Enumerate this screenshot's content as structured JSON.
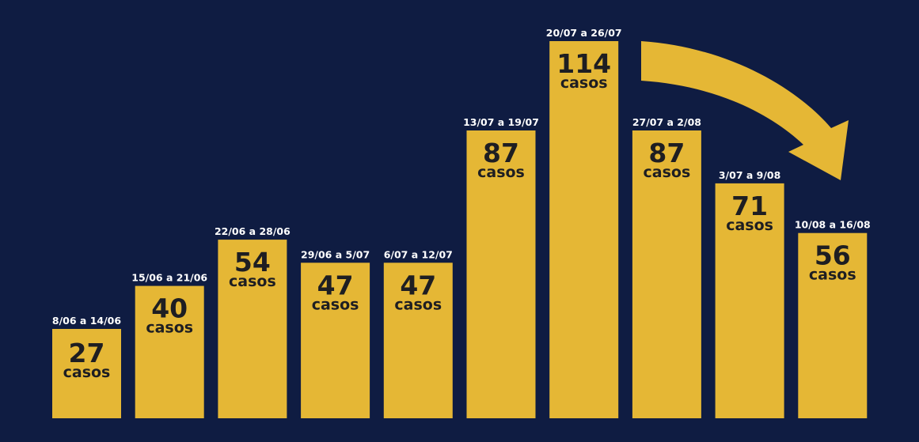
{
  "chart_data": {
    "type": "bar",
    "categories": [
      "8/06 a 14/06",
      "15/06 a 21/06",
      "22/06 a 28/06",
      "29/06 a 5/07",
      "6/07 a 12/07",
      "13/07 a 19/07",
      "20/07 a 26/07",
      "27/07 a 2/08",
      "3/07 a 9/08",
      "10/08 a 16/08"
    ],
    "values": [
      27,
      40,
      54,
      47,
      47,
      87,
      114,
      87,
      71,
      56
    ],
    "unit_label": "casos",
    "title": "",
    "xlabel": "",
    "ylabel": "",
    "ylim": [
      0,
      114
    ],
    "grid": false,
    "legend": "none",
    "annotations": [
      {
        "type": "arrow",
        "from_category": "20/07 a 26/07",
        "to_category": "10/08 a 16/08",
        "meaning": "downward trend"
      }
    ]
  },
  "colors": {
    "background": "#0f1c42",
    "bar": "#e5b735",
    "bar_text": "#1e1e22",
    "date_text": "#ffffff",
    "arrow": "#e5b735"
  }
}
